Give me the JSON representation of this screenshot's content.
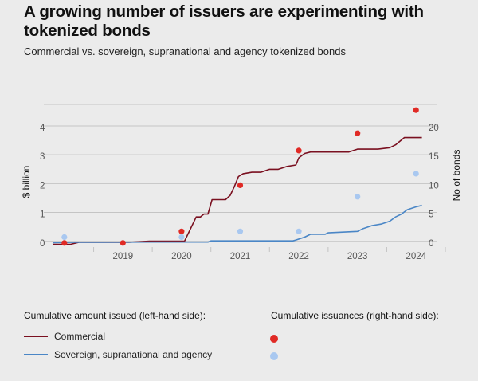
{
  "title": "A growing number of issuers are experimenting with tokenized bonds",
  "subtitle": "Commercial vs. sovereign, supranational and agency tokenized bonds",
  "legend": {
    "left_heading": "Cumulative amount issued (left-hand side):",
    "right_heading": "Cumulative issuances (right-hand side):",
    "commercial_label": "Commercial",
    "ssa_label": "Sovereign, supranational and agency"
  },
  "colors": {
    "commercial": "#7a1020",
    "ssa": "#4a86c6",
    "commercial_dot": "#e02a25",
    "ssa_dot": "#a9c8f0",
    "grid": "#c4c4c4"
  },
  "chart_data": {
    "type": "line",
    "xlabel": "",
    "ylabel": "$ billion",
    "y2label": "No of bonds",
    "xticks": [
      "2019",
      "2020",
      "2021",
      "2022",
      "2023",
      "2024"
    ],
    "yticks": [
      "0",
      "1",
      "2",
      "3",
      "4"
    ],
    "y2ticks": [
      "0",
      "5",
      "10",
      "15",
      "20"
    ],
    "ylim": [
      -0.2,
      4.8
    ],
    "y2lim": [
      -1,
      24
    ],
    "xlim": [
      2018.15,
      2024.85
    ],
    "series": [
      {
        "name": "Commercial",
        "axis": "left",
        "kind": "line",
        "x": [
          2018.3,
          2018.6,
          2018.75,
          2019.6,
          2019.95,
          2020.5,
          2020.55,
          2020.75,
          2020.82,
          2020.88,
          2020.95,
          2021.02,
          2021.1,
          2021.25,
          2021.33,
          2021.4,
          2021.47,
          2021.55,
          2021.7,
          2021.85,
          2022.0,
          2022.15,
          2022.3,
          2022.45,
          2022.5,
          2022.6,
          2022.7,
          2023.0,
          2023.35,
          2023.5,
          2023.6,
          2023.85,
          2024.05,
          2024.15,
          2024.3,
          2024.45,
          2024.6
        ],
        "y": [
          -0.05,
          -0.05,
          0.02,
          0.02,
          0.06,
          0.06,
          0.06,
          0.9,
          0.9,
          1.0,
          1.0,
          1.5,
          1.5,
          1.5,
          1.65,
          1.95,
          2.3,
          2.4,
          2.45,
          2.45,
          2.55,
          2.55,
          2.65,
          2.7,
          2.95,
          3.1,
          3.15,
          3.15,
          3.15,
          3.25,
          3.25,
          3.25,
          3.3,
          3.4,
          3.65,
          3.65,
          3.65
        ]
      },
      {
        "name": "Sovereign, supranational and agency",
        "axis": "left",
        "kind": "line",
        "x": [
          2018.3,
          2018.75,
          2019.95,
          2020.5,
          2020.55,
          2020.95,
          2021.0,
          2022.4,
          2022.45,
          2022.6,
          2022.7,
          2022.95,
          2023.0,
          2023.5,
          2023.6,
          2023.75,
          2023.9,
          2024.05,
          2024.15,
          2024.25,
          2024.35,
          2024.5,
          2024.6
        ],
        "y": [
          0.01,
          0.02,
          0.03,
          0.03,
          0.03,
          0.03,
          0.07,
          0.07,
          0.1,
          0.2,
          0.3,
          0.3,
          0.35,
          0.4,
          0.5,
          0.6,
          0.65,
          0.75,
          0.9,
          1.0,
          1.15,
          1.25,
          1.3
        ]
      },
      {
        "name": "Commercial",
        "axis": "right",
        "kind": "scatter",
        "x": [
          2018.5,
          2019.5,
          2020.5,
          2021.5,
          2022.5,
          2023.5,
          2024.5
        ],
        "y": [
          0,
          0,
          2,
          10,
          16,
          19,
          23
        ]
      },
      {
        "name": "Sovereign, supranational and agency",
        "axis": "right",
        "kind": "scatter",
        "x": [
          2018.5,
          2020.5,
          2021.5,
          2022.5,
          2023.5,
          2024.5
        ],
        "y": [
          1,
          1,
          2,
          2,
          8,
          12
        ]
      }
    ],
    "grid": true,
    "legend_position": "bottom"
  }
}
